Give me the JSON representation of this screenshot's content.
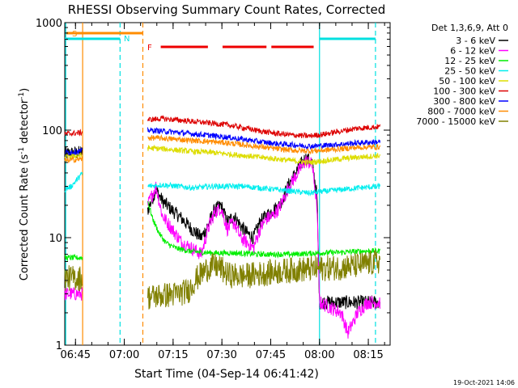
{
  "chart_data": {
    "type": "line",
    "title": "RHESSI Observing Summary Count Rates, Corrected",
    "xlabel": "Start Time (04-Sep-14 06:41:42)",
    "ylabel": "Corrected Count Rate (s⁻¹ detector⁻¹)",
    "ylabel_main": "Corrected Count Rate (s",
    "ylabel_sup1": "-1",
    "ylabel_mid": " detector",
    "ylabel_sup2": "-1",
    "ylabel_end": ")",
    "yscale": "log",
    "ylim": [
      1,
      1000
    ],
    "xlim_minutes": [
      0,
      100
    ],
    "x_ticks": [
      {
        "t": 3.3,
        "label": "06:45"
      },
      {
        "t": 18.3,
        "label": "07:00"
      },
      {
        "t": 33.3,
        "label": "07:15"
      },
      {
        "t": 48.3,
        "label": "07:30"
      },
      {
        "t": 63.3,
        "label": "07:45"
      },
      {
        "t": 78.3,
        "label": "08:00"
      },
      {
        "t": 93.3,
        "label": "08:15"
      }
    ],
    "y_ticks": [
      {
        "v": 1,
        "label": "1"
      },
      {
        "v": 10,
        "label": "10"
      },
      {
        "v": 100,
        "label": "100"
      },
      {
        "v": 1000,
        "label": "1000"
      }
    ],
    "legend_position": "right",
    "legend_title": "Det 1,3,6,9, Att 0",
    "timestamp": "19-Oct-2021 14:06",
    "annotations": {
      "s_label": "S",
      "n_label": "N",
      "f_label": "F",
      "saa_interval": [
        0.5,
        24.0
      ],
      "night_intervals": [
        [
          -1.0,
          17.0
        ],
        [
          78.3,
          95.5
        ]
      ],
      "flare_segments": [
        [
          29.5,
          44.0
        ],
        [
          48.5,
          62.0
        ],
        [
          63.5,
          76.5
        ]
      ]
    },
    "vertical_lines": [
      {
        "t": 0.3,
        "color": "#00e0e0",
        "style": "solid"
      },
      {
        "t": 5.5,
        "color": "#ff8c00",
        "style": "solid"
      },
      {
        "t": 17.0,
        "color": "#00e0e0",
        "style": "dashed"
      },
      {
        "t": 24.0,
        "color": "#ff8c00",
        "style": "dashed"
      },
      {
        "t": 78.3,
        "color": "#00e0e0",
        "style": "solid"
      },
      {
        "t": 95.5,
        "color": "#00e0e0",
        "style": "dashed"
      }
    ],
    "segments": [
      [
        0,
        5.5
      ],
      [
        25.5,
        97.0
      ]
    ],
    "series": [
      {
        "name": "3 - 6 keV",
        "color": "#000000",
        "points": [
          [
            0,
            60
          ],
          [
            5.5,
            62
          ],
          [
            25.5,
            18
          ],
          [
            28,
            28
          ],
          [
            30,
            22
          ],
          [
            33,
            18
          ],
          [
            36,
            15
          ],
          [
            39,
            12
          ],
          [
            42,
            10
          ],
          [
            44,
            13
          ],
          [
            46,
            18
          ],
          [
            48,
            20
          ],
          [
            50,
            14
          ],
          [
            52,
            16
          ],
          [
            54,
            13
          ],
          [
            56,
            11
          ],
          [
            58,
            10
          ],
          [
            60,
            14
          ],
          [
            62,
            16
          ],
          [
            64,
            18
          ],
          [
            66,
            20
          ],
          [
            69,
            32
          ],
          [
            72,
            45
          ],
          [
            74,
            55
          ],
          [
            76,
            50
          ],
          [
            77.5,
            25
          ],
          [
            78.3,
            2.5
          ],
          [
            97,
            2.5
          ]
        ]
      },
      {
        "name": "6 - 12 keV",
        "color": "#ff00ff",
        "points": [
          [
            0,
            3
          ],
          [
            5.5,
            3
          ],
          [
            25.5,
            20
          ],
          [
            28,
            30
          ],
          [
            30,
            16
          ],
          [
            33,
            12
          ],
          [
            36,
            9
          ],
          [
            39,
            8
          ],
          [
            42,
            7
          ],
          [
            44,
            12
          ],
          [
            46,
            17
          ],
          [
            48,
            19
          ],
          [
            50,
            12
          ],
          [
            52,
            14
          ],
          [
            54,
            10
          ],
          [
            56,
            9
          ],
          [
            58,
            8
          ],
          [
            60,
            12
          ],
          [
            62,
            15
          ],
          [
            64,
            16
          ],
          [
            66,
            19
          ],
          [
            69,
            30
          ],
          [
            72,
            42
          ],
          [
            74,
            52
          ],
          [
            76,
            48
          ],
          [
            77.5,
            20
          ],
          [
            78.3,
            2.5
          ],
          [
            85,
            2.0
          ],
          [
            87,
            1.3
          ],
          [
            90,
            2.0
          ],
          [
            93,
            2.5
          ],
          [
            97,
            2.5
          ]
        ]
      },
      {
        "name": "12 - 25 keV",
        "color": "#00ee00",
        "points": [
          [
            0,
            6.5
          ],
          [
            5.5,
            6.5
          ],
          [
            25.5,
            22
          ],
          [
            27,
            15
          ],
          [
            29,
            11
          ],
          [
            31,
            9
          ],
          [
            34,
            8
          ],
          [
            38,
            7.5
          ],
          [
            42,
            7.3
          ],
          [
            46,
            7.2
          ],
          [
            52,
            7.2
          ],
          [
            60,
            7.0
          ],
          [
            70,
            7.0
          ],
          [
            78,
            7.2
          ],
          [
            85,
            7.3
          ],
          [
            92,
            7.5
          ],
          [
            97,
            7.5
          ]
        ]
      },
      {
        "name": "25 - 50 keV",
        "color": "#00eeee",
        "points": [
          [
            0,
            28
          ],
          [
            2,
            30
          ],
          [
            5.5,
            40
          ],
          [
            25.5,
            30
          ],
          [
            30,
            31
          ],
          [
            35,
            30
          ],
          [
            40,
            29
          ],
          [
            45,
            30
          ],
          [
            50,
            30
          ],
          [
            55,
            30
          ],
          [
            60,
            29
          ],
          [
            65,
            28
          ],
          [
            70,
            27
          ],
          [
            75,
            26
          ],
          [
            80,
            27
          ],
          [
            85,
            28
          ],
          [
            90,
            29
          ],
          [
            97,
            30
          ]
        ]
      },
      {
        "name": "50 - 100 keV",
        "color": "#dddd00",
        "points": [
          [
            0,
            57
          ],
          [
            5.5,
            58
          ],
          [
            25.5,
            68
          ],
          [
            30,
            67
          ],
          [
            35,
            65
          ],
          [
            40,
            63
          ],
          [
            45,
            62
          ],
          [
            50,
            60
          ],
          [
            55,
            58
          ],
          [
            60,
            56
          ],
          [
            65,
            54
          ],
          [
            70,
            52
          ],
          [
            75,
            50
          ],
          [
            80,
            52
          ],
          [
            85,
            54
          ],
          [
            90,
            56
          ],
          [
            97,
            58
          ]
        ]
      },
      {
        "name": "100 - 300 keV",
        "color": "#dd0000",
        "points": [
          [
            0,
            92
          ],
          [
            5.5,
            95
          ],
          [
            25.5,
            125
          ],
          [
            30,
            128
          ],
          [
            35,
            124
          ],
          [
            40,
            120
          ],
          [
            45,
            116
          ],
          [
            50,
            112
          ],
          [
            55,
            105
          ],
          [
            60,
            98
          ],
          [
            65,
            93
          ],
          [
            70,
            90
          ],
          [
            75,
            88
          ],
          [
            80,
            92
          ],
          [
            85,
            98
          ],
          [
            90,
            104
          ],
          [
            97,
            108
          ]
        ]
      },
      {
        "name": "300 - 800 keV",
        "color": "#0000ff",
        "points": [
          [
            0,
            62
          ],
          [
            5.5,
            64
          ],
          [
            25.5,
            100
          ],
          [
            30,
            98
          ],
          [
            35,
            95
          ],
          [
            40,
            92
          ],
          [
            45,
            89
          ],
          [
            50,
            86
          ],
          [
            55,
            82
          ],
          [
            60,
            78
          ],
          [
            65,
            75
          ],
          [
            70,
            73
          ],
          [
            75,
            71
          ],
          [
            80,
            72
          ],
          [
            85,
            74
          ],
          [
            90,
            76
          ],
          [
            97,
            78
          ]
        ]
      },
      {
        "name": "800 - 7000 keV",
        "color": "#ff8c00",
        "points": [
          [
            0,
            52
          ],
          [
            5.5,
            54
          ],
          [
            25.5,
            85
          ],
          [
            30,
            84
          ],
          [
            35,
            82
          ],
          [
            40,
            80
          ],
          [
            45,
            78
          ],
          [
            50,
            76
          ],
          [
            55,
            73
          ],
          [
            60,
            70
          ],
          [
            65,
            67
          ],
          [
            70,
            65
          ],
          [
            75,
            64
          ],
          [
            80,
            65
          ],
          [
            85,
            67
          ],
          [
            90,
            69
          ],
          [
            97,
            70
          ]
        ]
      },
      {
        "name": "7000 - 15000 keV",
        "color": "#808000",
        "points": [
          [
            0,
            4.2
          ],
          [
            5.5,
            4.2
          ],
          [
            25.5,
            2.8
          ],
          [
            30,
            2.9
          ],
          [
            35,
            3.0
          ],
          [
            38,
            3.2
          ],
          [
            40,
            4.0
          ],
          [
            42,
            4.6
          ],
          [
            44,
            5.2
          ],
          [
            46,
            5.5
          ],
          [
            48,
            5.2
          ],
          [
            50,
            4.5
          ],
          [
            55,
            4.4
          ],
          [
            60,
            4.6
          ],
          [
            65,
            4.8
          ],
          [
            70,
            5.0
          ],
          [
            75,
            5.1
          ],
          [
            80,
            5.2
          ],
          [
            85,
            5.3
          ],
          [
            90,
            5.5
          ],
          [
            97,
            6.0
          ]
        ]
      }
    ]
  }
}
